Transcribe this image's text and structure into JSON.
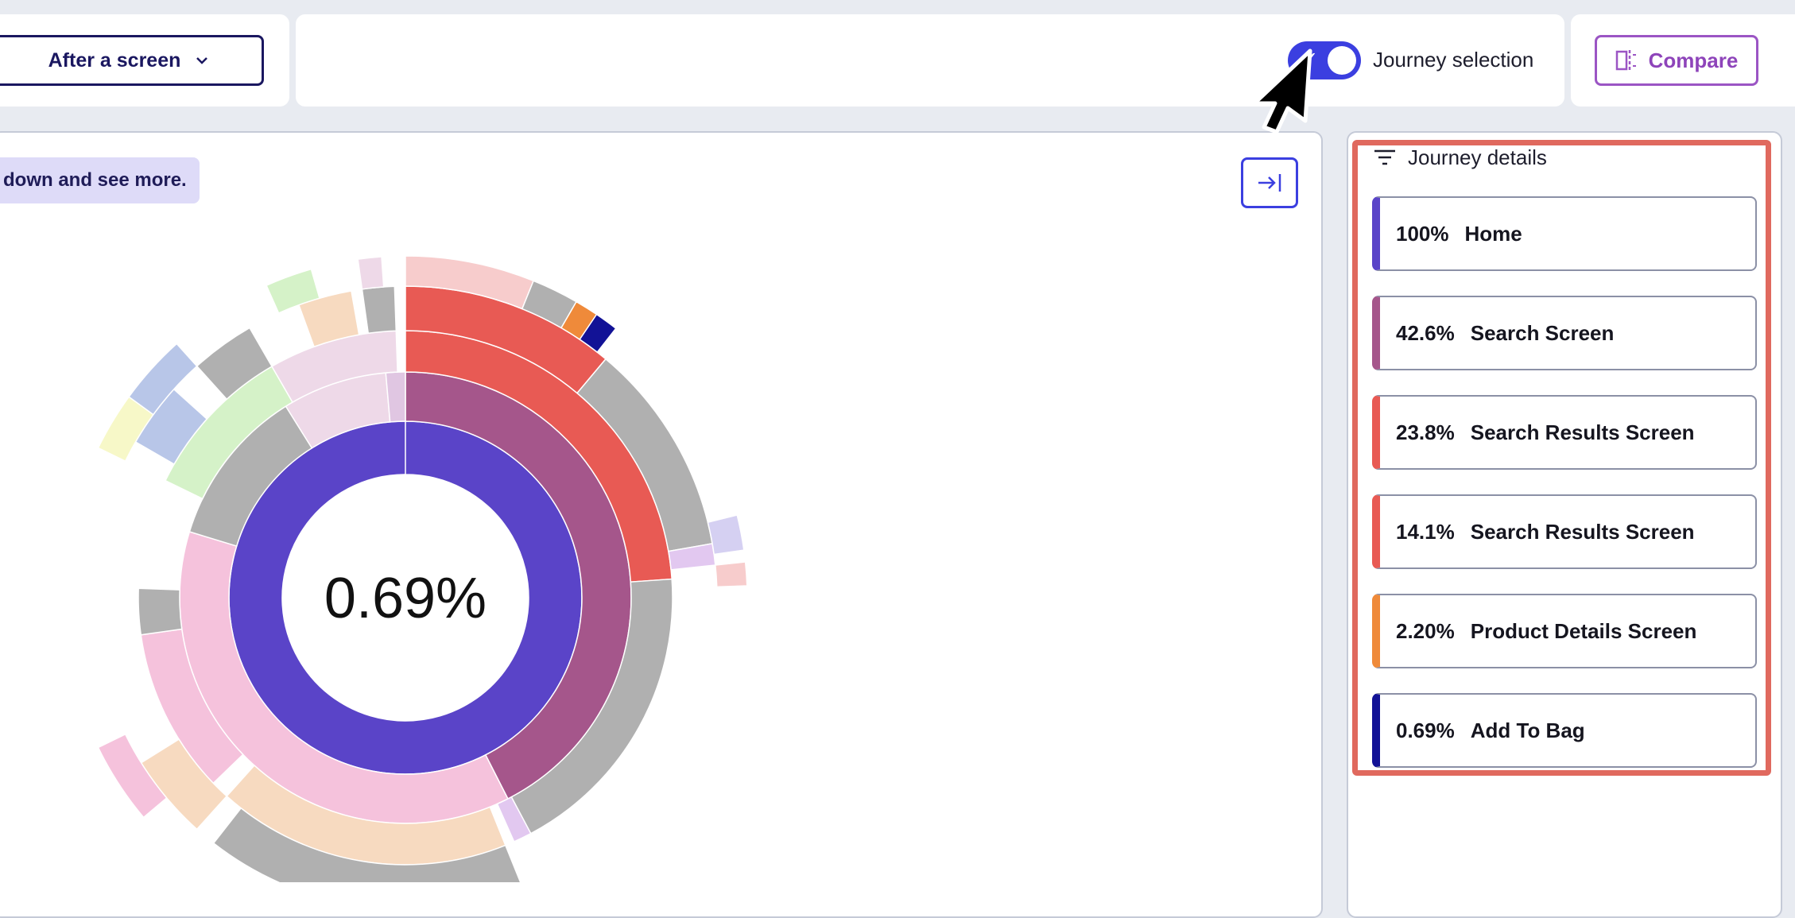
{
  "toolbar": {
    "dropdown_label": "After a screen",
    "toggle_label": "Journey selection",
    "toggle_on": true,
    "compare_label": "Compare"
  },
  "canvas": {
    "hint_text": "down and see more.",
    "center_value": "0.69%"
  },
  "journey": {
    "title": "Journey details",
    "steps": [
      {
        "percent": "100%",
        "name": "Home",
        "color": "#5a44c8"
      },
      {
        "percent": "42.6%",
        "name": "Search Screen",
        "color": "#a5568b"
      },
      {
        "percent": "23.8%",
        "name": "Search Results Screen",
        "color": "#e85a54"
      },
      {
        "percent": "14.1%",
        "name": "Search Results Screen",
        "color": "#e85a54"
      },
      {
        "percent": "2.20%",
        "name": "Product Details Screen",
        "color": "#ef8a3a"
      },
      {
        "percent": "0.69%",
        "name": "Add To Bag",
        "color": "#121296"
      }
    ]
  },
  "colors": {
    "accent": "#3b3fe0",
    "highlight": "#e0695e",
    "compare": "#9b55c4"
  }
}
